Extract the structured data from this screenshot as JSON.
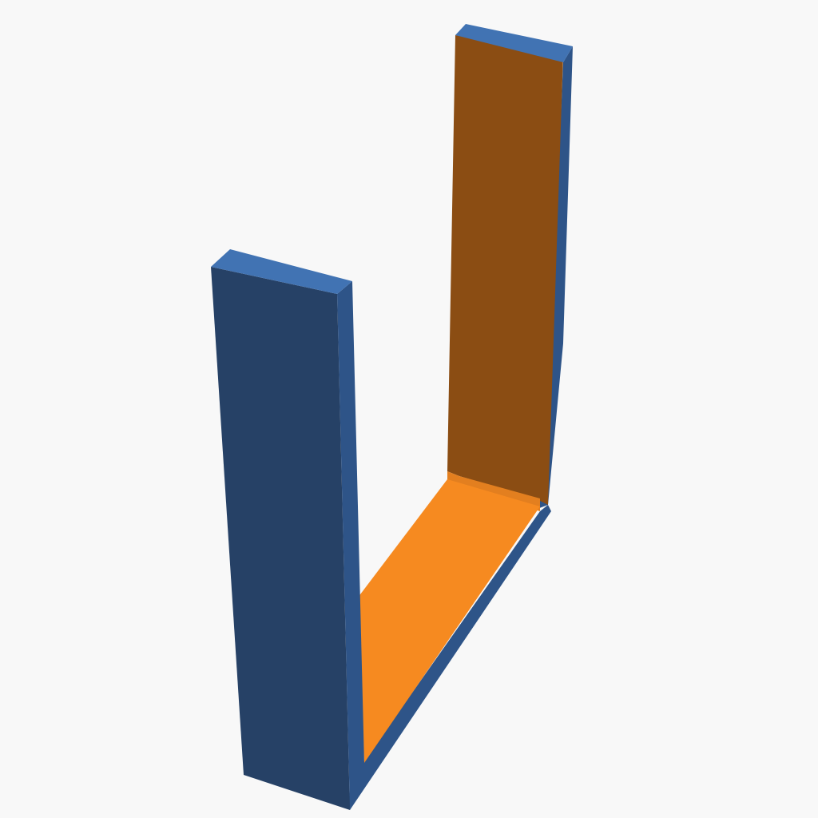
{
  "scene": {
    "background": "#f8f8f8",
    "object": "u-shaped-bracket",
    "colors": {
      "outer_face": "#264166",
      "outer_edge": "#2e5488",
      "top_cap": "#4173b3",
      "inner_back_face": "#8b4d13",
      "inner_floor": "#f68a20",
      "inner_floor_fold": "#e37f1f"
    }
  }
}
